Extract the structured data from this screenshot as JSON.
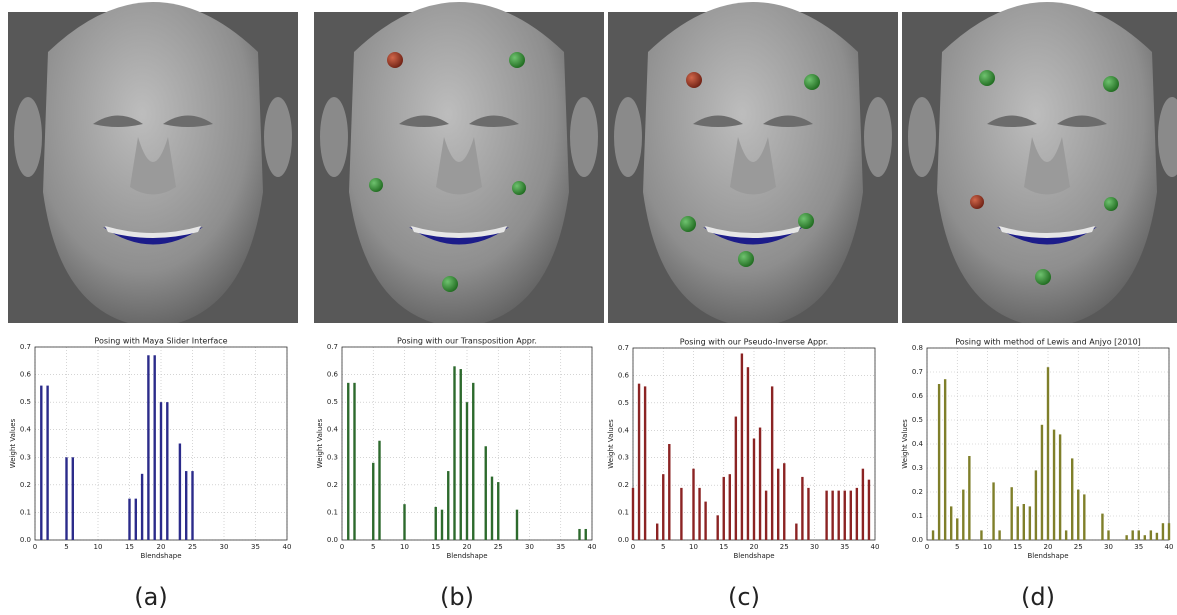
{
  "chart_data": [
    {
      "type": "bar",
      "title": "Posing with Maya Slider Interface",
      "x_label": "Blendshape",
      "y_label": "Weight Values",
      "caption": "(a)",
      "color": "#2b2b8a",
      "x": [
        1,
        2,
        5,
        6,
        15,
        16,
        17,
        18,
        19,
        20,
        21,
        23,
        24,
        25
      ],
      "values": [
        0.56,
        0.56,
        0.3,
        0.3,
        0.15,
        0.15,
        0.24,
        0.67,
        0.67,
        0.5,
        0.5,
        0.35,
        0.25,
        0.25
      ],
      "xlim": [
        0,
        40
      ],
      "xticks": [
        0,
        5,
        10,
        15,
        20,
        25,
        30,
        35,
        40
      ],
      "ylim": [
        0,
        0.7
      ],
      "yticks": [
        {
          "value": 0,
          "label": "0.0"
        },
        0.1,
        0.2,
        0.3,
        0.4,
        0.5,
        0.6,
        0.7
      ],
      "grid": true
    },
    {
      "type": "bar",
      "title": "Posing with our Transposition Appr.",
      "x_label": "Blendshape",
      "y_label": "Weight Values",
      "caption": "(b)",
      "color": "#2d6a2d",
      "x": [
        1,
        2,
        5,
        6,
        10,
        15,
        16,
        17,
        18,
        19,
        20,
        21,
        23,
        24,
        25,
        28,
        38,
        39
      ],
      "values": [
        0.57,
        0.57,
        0.28,
        0.36,
        0.13,
        0.12,
        0.11,
        0.25,
        0.63,
        0.62,
        0.5,
        0.57,
        0.34,
        0.23,
        0.21,
        0.11,
        0.04,
        0.04
      ],
      "xlim": [
        0,
        40
      ],
      "xticks": [
        0,
        5,
        10,
        15,
        20,
        25,
        30,
        35,
        40
      ],
      "ylim": [
        0,
        0.7
      ],
      "yticks": [
        {
          "value": 0,
          "label": "0.0"
        },
        0.1,
        0.2,
        0.3,
        0.4,
        0.5,
        0.6,
        0.7
      ],
      "grid": true
    },
    {
      "type": "bar",
      "title": "Posing with our Pseudo-Inverse Appr.",
      "x_label": "Blendshape",
      "y_label": "Weight Values",
      "caption": "(c)",
      "color": "#8b2323",
      "x": [
        0,
        1,
        2,
        4,
        5,
        6,
        8,
        10,
        11,
        12,
        14,
        15,
        16,
        17,
        18,
        19,
        20,
        21,
        22,
        23,
        24,
        25,
        27,
        28,
        29,
        32,
        33,
        34,
        35,
        36,
        37,
        38,
        39
      ],
      "values": [
        0.19,
        0.57,
        0.56,
        0.06,
        0.24,
        0.35,
        0.19,
        0.26,
        0.19,
        0.14,
        0.09,
        0.23,
        0.24,
        0.45,
        0.68,
        0.63,
        0.37,
        0.41,
        0.18,
        0.56,
        0.26,
        0.28,
        0.06,
        0.23,
        0.19,
        0.18,
        0.18,
        0.18,
        0.18,
        0.18,
        0.19,
        0.26,
        0.22
      ],
      "xlim": [
        0,
        40
      ],
      "xticks": [
        0,
        5,
        10,
        15,
        20,
        25,
        30,
        35,
        40
      ],
      "ylim": [
        0,
        0.7
      ],
      "yticks": [
        {
          "value": 0,
          "label": "0.0"
        },
        0.1,
        0.2,
        0.3,
        0.4,
        0.5,
        0.6,
        0.7
      ],
      "grid": true
    },
    {
      "type": "bar",
      "title": "Posing with method of Lewis and Anjyo [2010]",
      "x_label": "Blendshape",
      "y_label": "Weight Values",
      "caption": "(d)",
      "color": "#7f7f2a",
      "x": [
        1,
        2,
        3,
        4,
        5,
        6,
        7,
        9,
        11,
        12,
        14,
        15,
        16,
        17,
        18,
        19,
        20,
        21,
        22,
        23,
        24,
        25,
        26,
        29,
        30,
        33,
        34,
        35,
        36,
        37,
        38,
        39,
        40
      ],
      "values": [
        0.04,
        0.65,
        0.67,
        0.14,
        0.09,
        0.21,
        0.35,
        0.04,
        0.24,
        0.04,
        0.22,
        0.14,
        0.15,
        0.14,
        0.29,
        0.48,
        0.72,
        0.46,
        0.44,
        0.04,
        0.34,
        0.21,
        0.19,
        0.11,
        0.04,
        0.02,
        0.04,
        0.04,
        0.02,
        0.04,
        0.03,
        0.07,
        0.07
      ],
      "xlim": [
        0,
        40
      ],
      "xticks": [
        0,
        5,
        10,
        15,
        20,
        25,
        30,
        35,
        40
      ],
      "ylim": [
        0,
        0.8
      ],
      "yticks": [
        {
          "value": 0,
          "label": "0.0"
        },
        0.1,
        0.2,
        0.3,
        0.4,
        0.5,
        0.6,
        0.7,
        0.8
      ],
      "grid": true
    }
  ]
}
